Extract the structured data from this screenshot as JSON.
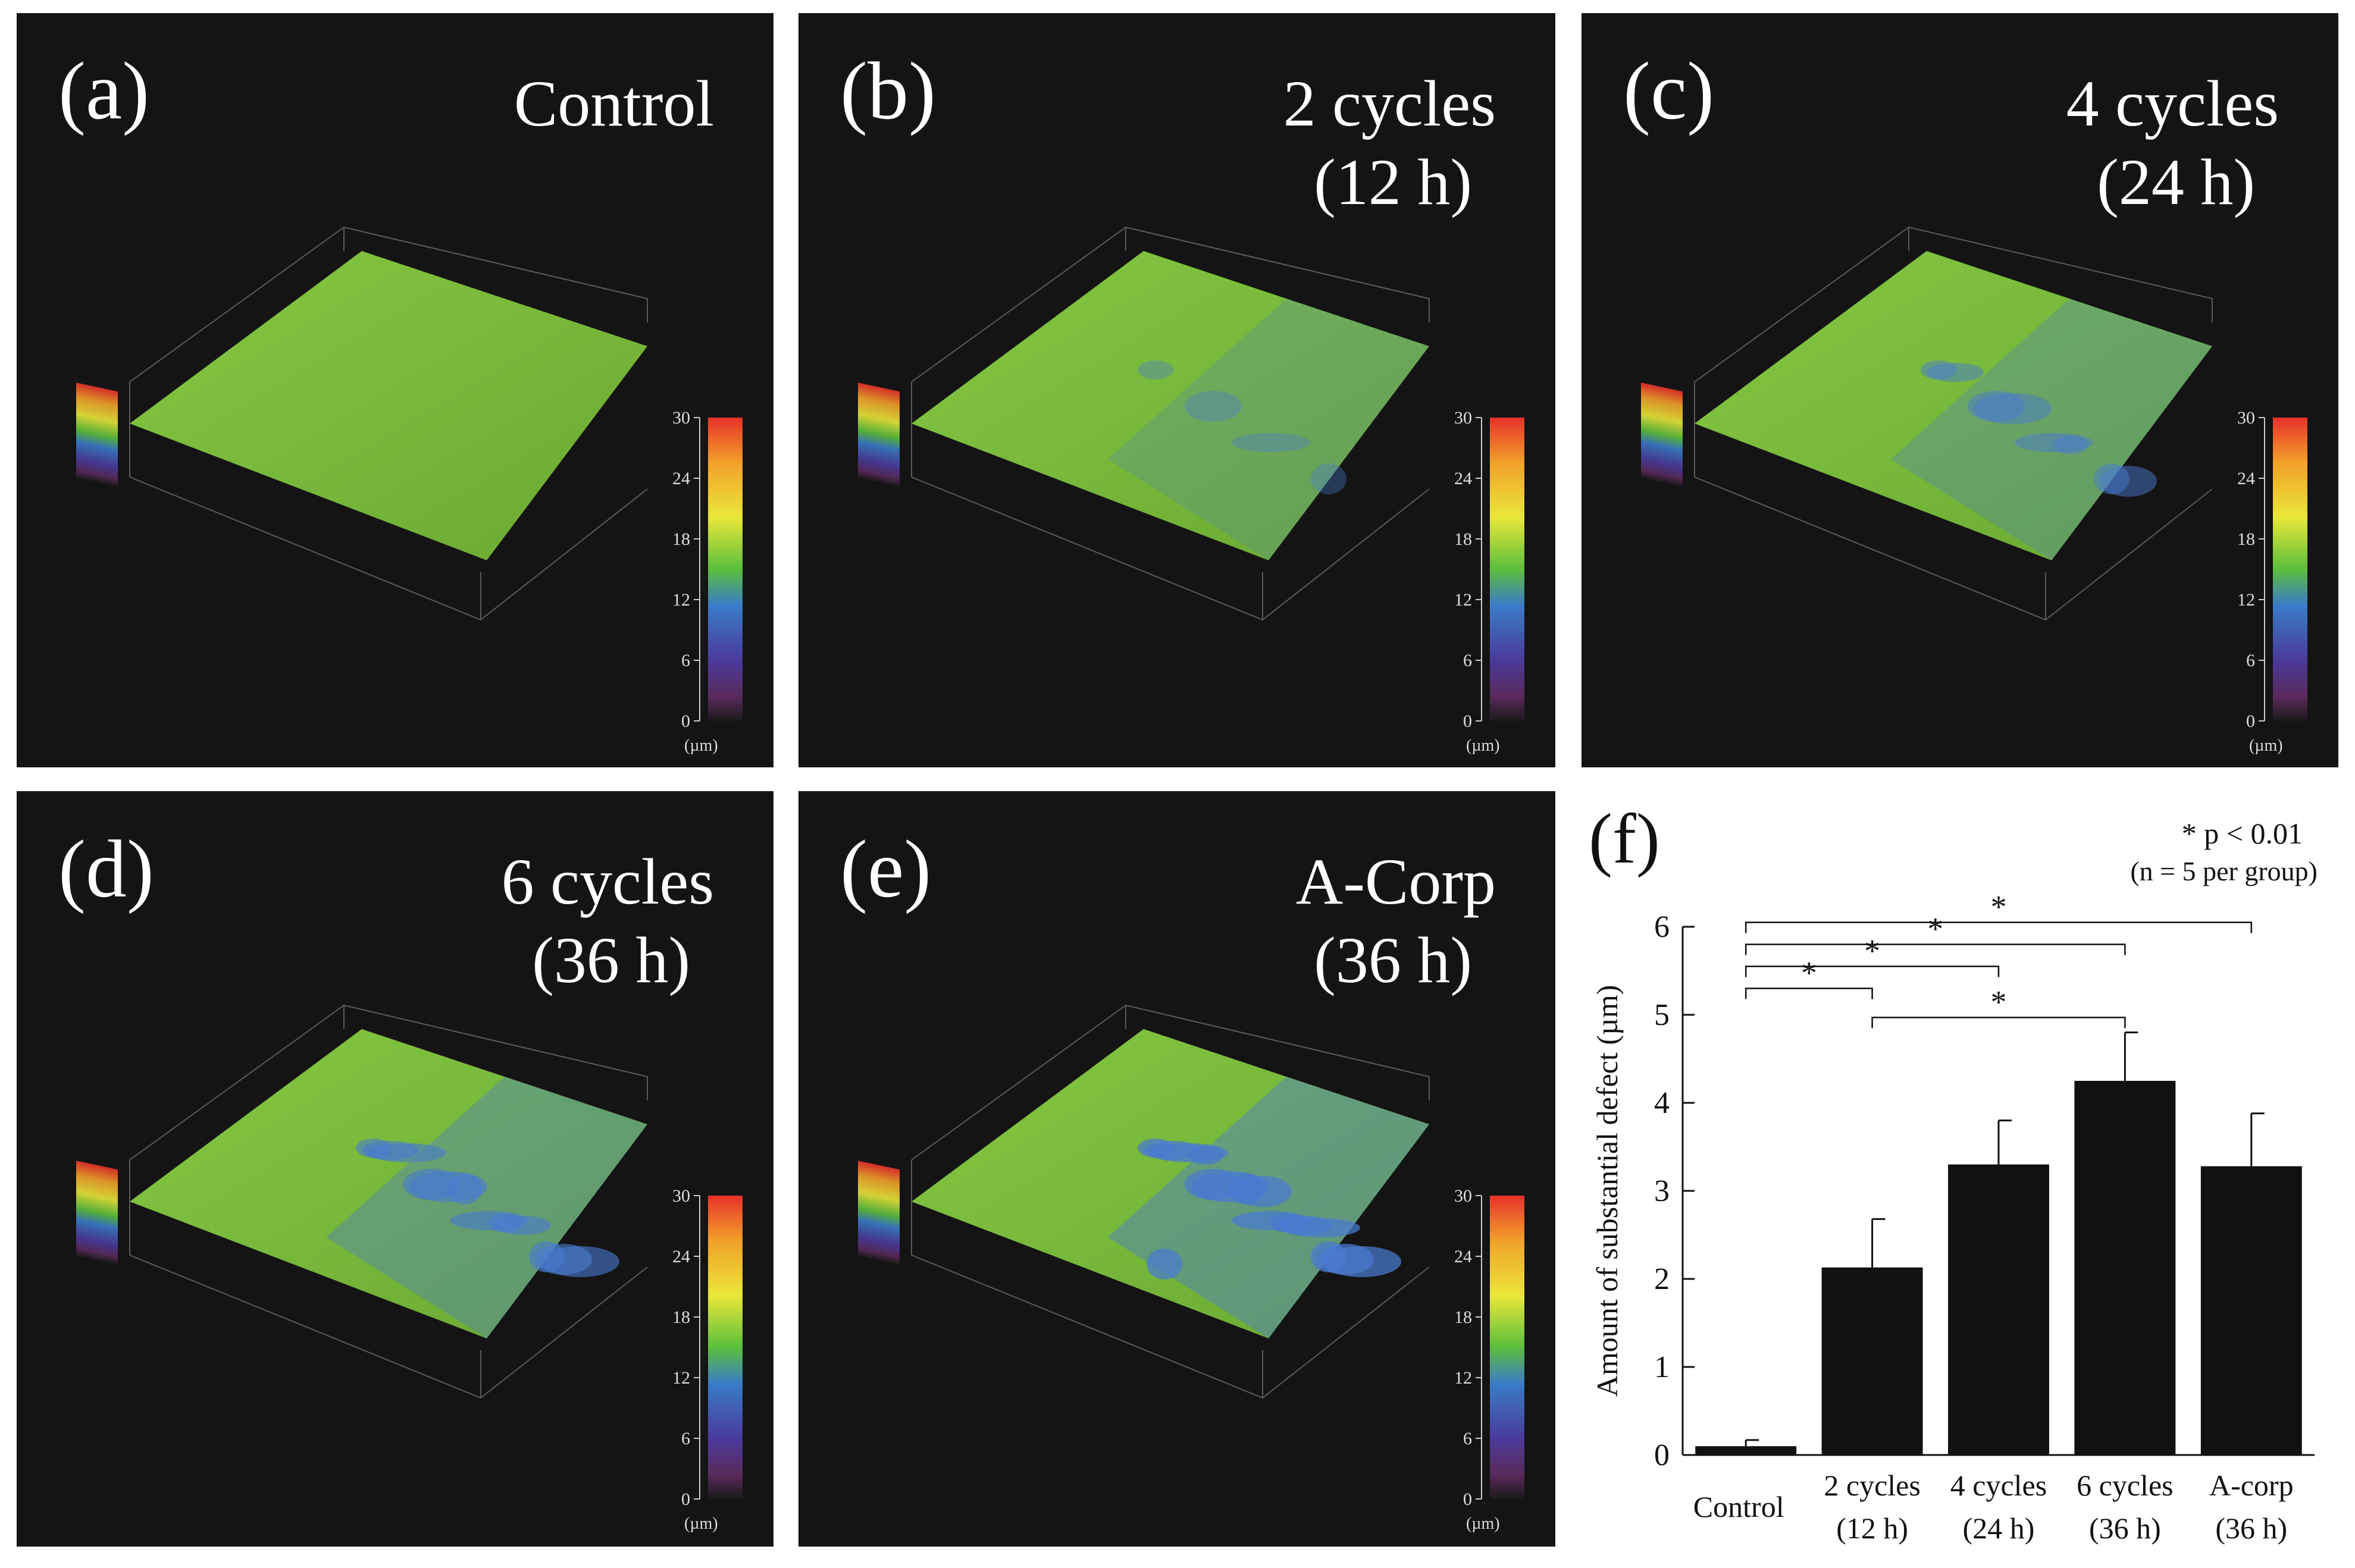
{
  "panels": [
    {
      "label": "(a)",
      "title": "Control",
      "title_line2": ""
    },
    {
      "label": "(b)",
      "title": "2 cycles",
      "title_line2": "(12 h)"
    },
    {
      "label": "(c)",
      "title": "4 cycles",
      "title_line2": "(24 h)"
    },
    {
      "label": "(d)",
      "title": "6 cycles",
      "title_line2": "(36 h)"
    },
    {
      "label": "(e)",
      "title": "A-Corp",
      "title_line2": "(36 h)"
    }
  ],
  "colorbar": {
    "ticks": [
      "30",
      "24",
      "18",
      "12",
      "6",
      "0"
    ],
    "unit": "(µm)"
  },
  "colors": {
    "panel_bg": "#141414",
    "surface_green": "#7cbd3c",
    "defect_blue": "#4a7ad0",
    "bar": "#111111"
  },
  "chart_data": {
    "type": "bar",
    "panel_label": "(f)",
    "categories": [
      {
        "line1": "Control",
        "line2": ""
      },
      {
        "line1": "2 cycles",
        "line2": "(12 h)"
      },
      {
        "line1": "4 cycles",
        "line2": "(24 h)"
      },
      {
        "line1": "6 cycles",
        "line2": "(36 h)"
      },
      {
        "line1": "A-corp",
        "line2": "(36 h)"
      }
    ],
    "values": [
      0.1,
      2.13,
      3.3,
      4.25,
      3.28
    ],
    "errors": [
      0.07,
      0.55,
      0.5,
      0.55,
      0.6
    ],
    "ylabel": "Amount of substantial defect (µm)",
    "ylim": [
      0,
      6
    ],
    "yticks": [
      0,
      1,
      2,
      3,
      4,
      5,
      6
    ],
    "significance": {
      "star": "*",
      "text": "p < 0.01",
      "n_text": "(n = 5 per group)"
    },
    "comparisons": [
      {
        "from": 0,
        "to": 1,
        "y": 5.3,
        "label": "*"
      },
      {
        "from": 0,
        "to": 2,
        "y": 5.55,
        "label": "*"
      },
      {
        "from": 0,
        "to": 3,
        "y": 5.8,
        "label": "*"
      },
      {
        "from": 0,
        "to": 4,
        "y": 6.05,
        "label": "*"
      },
      {
        "from": 1,
        "to": 3,
        "y": 4.97,
        "label": "*"
      }
    ]
  }
}
